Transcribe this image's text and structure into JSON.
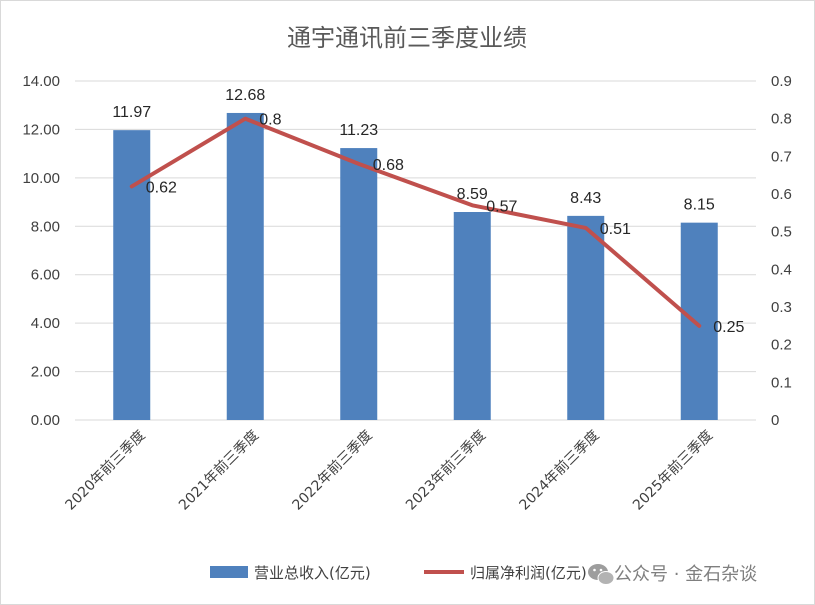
{
  "chart_data": {
    "type": "bar",
    "title": "通宇通讯前三季度业绩",
    "categories": [
      "2020年前三季度",
      "2021年前三季度",
      "2022年前三季度",
      "2023年前三季度",
      "2024年前三季度",
      "2025年前三季度"
    ],
    "y_left": {
      "min": 0,
      "max": 14,
      "step": 2,
      "tick_labels": [
        "0.00",
        "2.00",
        "4.00",
        "6.00",
        "8.00",
        "10.00",
        "12.00",
        "14.00"
      ]
    },
    "y_right": {
      "min": 0,
      "max": 0.9,
      "step": 0.1,
      "tick_labels": [
        "0",
        "0.1",
        "0.2",
        "0.3",
        "0.4",
        "0.5",
        "0.6",
        "0.7",
        "0.8",
        "0.9"
      ]
    },
    "grid": true,
    "legend_position": "bottom",
    "series": [
      {
        "name": "营业总收入(亿元)",
        "type": "bar",
        "axis": "left",
        "color": "#4f81bd",
        "values": [
          11.97,
          12.68,
          11.23,
          8.59,
          8.43,
          8.15
        ],
        "labels": [
          "11.97",
          "12.68",
          "11.23",
          "8.59",
          "8.43",
          "8.15"
        ]
      },
      {
        "name": "归属净利润(亿元)",
        "type": "line",
        "axis": "right",
        "color": "#c0504d",
        "values": [
          0.62,
          0.8,
          0.68,
          0.57,
          0.51,
          0.25
        ],
        "labels": [
          "0.62",
          "0.8",
          "0.68",
          "0.57",
          "0.51",
          "0.25"
        ]
      }
    ]
  },
  "watermark": {
    "icon": "wechat-icon",
    "text": "公众号 · 金石杂谈"
  }
}
